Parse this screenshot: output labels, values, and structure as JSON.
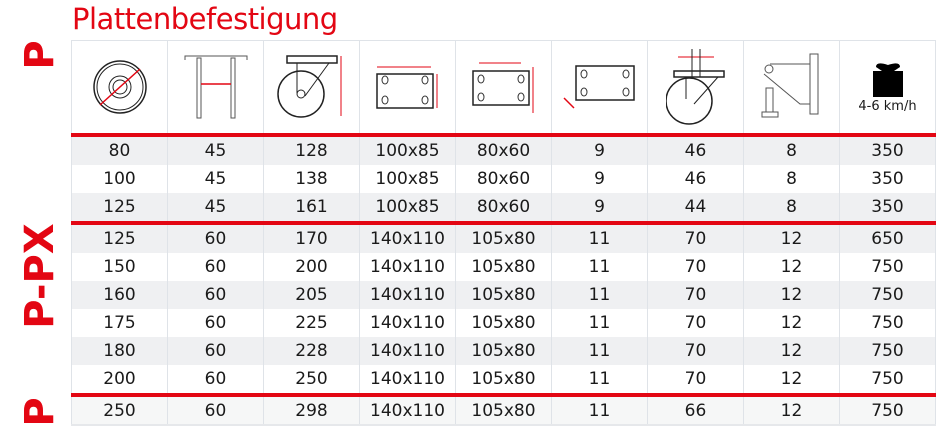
{
  "title": "Plattenbefestigung",
  "side_labels": [
    "P",
    "P-PX",
    "P"
  ],
  "accent_color": "#e30613",
  "header": {
    "icons": [
      "wheel-diameter-icon",
      "wheel-width-icon",
      "overall-height-icon",
      "plate-size-icon",
      "bolt-hole-spacing-icon",
      "bolt-hole-diameter-icon",
      "offset-icon",
      "bracket-bolt-icon",
      "load-capacity-weight-icon"
    ],
    "speed_label": "4-6 km/h"
  },
  "rows": [
    [
      "80",
      "45",
      "128",
      "100x85",
      "80x60",
      "9",
      "46",
      "8",
      "350"
    ],
    [
      "100",
      "45",
      "138",
      "100x85",
      "80x60",
      "9",
      "46",
      "8",
      "350"
    ],
    [
      "125",
      "45",
      "161",
      "100x85",
      "80x60",
      "9",
      "44",
      "8",
      "350"
    ],
    [
      "125",
      "60",
      "170",
      "140x110",
      "105x80",
      "11",
      "70",
      "12",
      "650"
    ],
    [
      "150",
      "60",
      "200",
      "140x110",
      "105x80",
      "11",
      "70",
      "12",
      "750"
    ],
    [
      "160",
      "60",
      "205",
      "140x110",
      "105x80",
      "11",
      "70",
      "12",
      "750"
    ],
    [
      "175",
      "60",
      "225",
      "140x110",
      "105x80",
      "11",
      "70",
      "12",
      "750"
    ],
    [
      "180",
      "60",
      "228",
      "140x110",
      "105x80",
      "11",
      "70",
      "12",
      "750"
    ],
    [
      "200",
      "60",
      "250",
      "140x110",
      "105x80",
      "11",
      "70",
      "12",
      "750"
    ],
    [
      "250",
      "60",
      "298",
      "140x110",
      "105x80",
      "11",
      "66",
      "12",
      "750"
    ]
  ]
}
